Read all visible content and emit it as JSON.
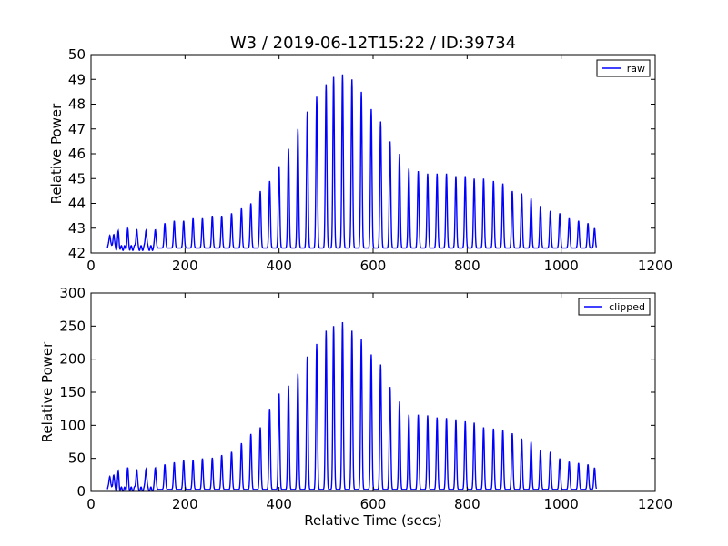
{
  "figure_title": "W3 / 2019-06-12T15:22 / ID:39734",
  "chart_data": [
    {
      "type": "line",
      "title": "W3 / 2019-06-12T15:22 / ID:39734",
      "xlabel": "",
      "ylabel": "Relative Power",
      "xlim": [
        0,
        1200
      ],
      "ylim": [
        42,
        50
      ],
      "xticks": [
        0,
        200,
        400,
        600,
        800,
        1000,
        1200
      ],
      "yticks": [
        42,
        43,
        44,
        45,
        46,
        47,
        48,
        49,
        50
      ],
      "grid": false,
      "legend_position": "top-right",
      "baseline": 42.2,
      "series": [
        {
          "name": "raw",
          "color": "#0000ff",
          "x_range": [
            35,
            1075
          ],
          "peaks": [
            [
              40,
              42.8
            ],
            [
              48,
              42.8
            ],
            [
              58,
              42.8
            ],
            [
              78,
              42.9
            ],
            [
              97,
              43.0
            ],
            [
              117,
              43.0
            ],
            [
              137,
              43.0
            ],
            [
              157,
              43.2
            ],
            [
              177,
              43.3
            ],
            [
              197,
              43.3
            ],
            [
              217,
              43.4
            ],
            [
              237,
              43.4
            ],
            [
              258,
              43.5
            ],
            [
              278,
              43.5
            ],
            [
              299,
              43.6
            ],
            [
              320,
              43.8
            ],
            [
              340,
              44.0
            ],
            [
              360,
              44.5
            ],
            [
              380,
              44.9
            ],
            [
              400,
              45.5
            ],
            [
              420,
              46.2
            ],
            [
              440,
              47.0
            ],
            [
              460,
              47.7
            ],
            [
              480,
              48.3
            ],
            [
              500,
              48.8
            ],
            [
              516,
              49.1
            ],
            [
              535,
              49.2
            ],
            [
              555,
              49.0
            ],
            [
              575,
              48.5
            ],
            [
              596,
              47.8
            ],
            [
              616,
              47.3
            ],
            [
              636,
              46.5
            ],
            [
              656,
              46.0
            ],
            [
              676,
              45.4
            ],
            [
              696,
              45.3
            ],
            [
              716,
              45.2
            ],
            [
              736,
              45.2
            ],
            [
              756,
              45.2
            ],
            [
              776,
              45.1
            ],
            [
              796,
              45.1
            ],
            [
              815,
              45.0
            ],
            [
              835,
              45.0
            ],
            [
              856,
              44.9
            ],
            [
              876,
              44.8
            ],
            [
              896,
              44.5
            ],
            [
              916,
              44.4
            ],
            [
              936,
              44.2
            ],
            [
              956,
              43.9
            ],
            [
              977,
              43.7
            ],
            [
              997,
              43.6
            ],
            [
              1017,
              43.4
            ],
            [
              1037,
              43.3
            ],
            [
              1057,
              43.2
            ],
            [
              1071,
              43.0
            ]
          ]
        }
      ]
    },
    {
      "type": "line",
      "xlabel": "Relative Time (secs)",
      "ylabel": "Relative Power",
      "xlim": [
        0,
        1200
      ],
      "ylim": [
        0,
        300
      ],
      "xticks": [
        0,
        200,
        400,
        600,
        800,
        1000,
        1200
      ],
      "yticks": [
        0,
        50,
        100,
        150,
        200,
        250,
        300
      ],
      "grid": false,
      "legend_position": "top-right",
      "baseline": 3,
      "series": [
        {
          "name": "clipped",
          "color": "#0000ff",
          "x_range": [
            35,
            1075
          ],
          "peaks": [
            [
              40,
              26
            ],
            [
              48,
              27
            ],
            [
              58,
              27
            ],
            [
              78,
              33
            ],
            [
              97,
              35
            ],
            [
              117,
              37
            ],
            [
              137,
              38
            ],
            [
              157,
              41
            ],
            [
              177,
              44
            ],
            [
              197,
              47
            ],
            [
              217,
              48
            ],
            [
              237,
              50
            ],
            [
              258,
              51
            ],
            [
              278,
              55
            ],
            [
              299,
              60
            ],
            [
              320,
              73
            ],
            [
              340,
              87
            ],
            [
              360,
              97
            ],
            [
              380,
              125
            ],
            [
              400,
              148
            ],
            [
              420,
              160
            ],
            [
              440,
              178
            ],
            [
              460,
              204
            ],
            [
              480,
              223
            ],
            [
              500,
              243
            ],
            [
              516,
              250
            ],
            [
              535,
              256
            ],
            [
              555,
              243
            ],
            [
              575,
              230
            ],
            [
              596,
              207
            ],
            [
              616,
              192
            ],
            [
              636,
              158
            ],
            [
              656,
              136
            ],
            [
              676,
              116
            ],
            [
              696,
              116
            ],
            [
              716,
              115
            ],
            [
              736,
              112
            ],
            [
              756,
              111
            ],
            [
              776,
              109
            ],
            [
              796,
              106
            ],
            [
              815,
              104
            ],
            [
              835,
              97
            ],
            [
              856,
              95
            ],
            [
              876,
              93
            ],
            [
              896,
              88
            ],
            [
              916,
              80
            ],
            [
              936,
              75
            ],
            [
              956,
              63
            ],
            [
              977,
              60
            ],
            [
              997,
              50
            ],
            [
              1017,
              45
            ],
            [
              1037,
              43
            ],
            [
              1057,
              41
            ],
            [
              1071,
              36
            ]
          ]
        }
      ]
    }
  ]
}
